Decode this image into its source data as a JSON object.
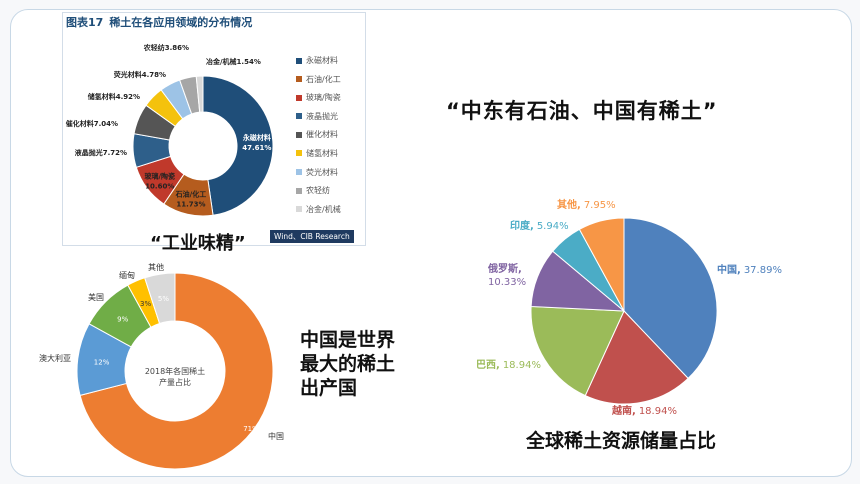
{
  "chart1": {
    "fig_no": "图表17",
    "title": "稀土在各应用领域的分布情况",
    "source": "Wind、CIB Research",
    "caption": "“工业味精”",
    "chart_data": {
      "type": "pie",
      "title": "稀土在各应用领域的分布情况",
      "legend": "right",
      "series": [
        {
          "values": [
            47.61,
            11.73,
            10.6,
            7.72,
            7.04,
            4.92,
            4.78,
            3.86,
            1.54
          ],
          "categories": [
            "永磁材料",
            "石油/化工",
            "玻璃/陶瓷",
            "液晶抛光",
            "催化材料",
            "储氢材料",
            "荧光材料",
            "农轻纺",
            "冶金/机械"
          ],
          "labels": [
            "永磁材料\n47.61%",
            "石油/化工\n11.73%",
            "玻璃/陶瓷\n10.60%",
            "液晶抛光7.72%",
            "催化材料7.04%",
            "储氢材料4.92%",
            "荧光材料4.78%",
            "农轻纺3.86%",
            "冶金/机械1.54%"
          ],
          "colors": [
            "#1f4e79",
            "#b55c1e",
            "#c0392b",
            "#2e5f8a",
            "#555555",
            "#f4c20d",
            "#9dc3e6",
            "#a6a6a6",
            "#d9d9d9"
          ]
        }
      ]
    }
  },
  "chart2": {
    "center_label": [
      "2018年各国稀土",
      "产量占比"
    ],
    "chart_data": {
      "type": "pie",
      "series": [
        {
          "values": [
            71,
            12,
            9,
            3,
            5
          ],
          "categories": [
            "中国",
            "澳大利亚",
            "美国",
            "缅甸",
            "其他"
          ],
          "value_labels": [
            "71%",
            "12%",
            "9%",
            "3%",
            "5%"
          ],
          "colors": [
            "#ed7d31",
            "#5b9bd5",
            "#70ad47",
            "#ffc000",
            "#d9d9d9"
          ]
        }
      ]
    }
  },
  "chart2_text": [
    "中国是世界",
    "最大的稀土",
    "出产国"
  ],
  "quote": "“中东有石油、中国有稀土”",
  "chart3": {
    "caption": "全球稀土资源储量占比",
    "chart_data": {
      "type": "pie",
      "series": [
        {
          "values": [
            37.89,
            18.94,
            18.94,
            10.33,
            5.94,
            7.95
          ],
          "categories": [
            "中国",
            "越南",
            "巴西",
            "俄罗斯",
            "印度",
            "其他"
          ],
          "value_labels": [
            "37.89%",
            "18.94%",
            "18.94%",
            "10.33%",
            "5.94%",
            "7.95%"
          ],
          "colors": [
            "#4f81bd",
            "#c0504d",
            "#9bbb59",
            "#8064a2",
            "#4bacc6",
            "#f79646"
          ]
        }
      ]
    }
  }
}
